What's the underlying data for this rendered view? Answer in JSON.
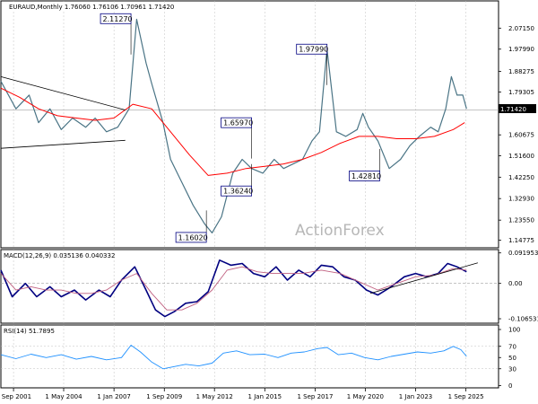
{
  "chart_data": {
    "type": "line",
    "panels": [
      {
        "name": "price",
        "title": "EURAUD,Monthly",
        "ohlc": "1.76060 1.76106 1.70961 1.71420",
        "ylim": [
          1.115,
          2.19
        ],
        "yticks": [
          "2.07150",
          "1.97990",
          "1.88275",
          "1.79305",
          "1.71420",
          "1.60675",
          "1.51600",
          "1.42250",
          "1.32930",
          "1.23550",
          "1.14775"
        ],
        "ytick_values": [
          2.0715,
          1.9799,
          1.88275,
          1.79305,
          1.7142,
          1.60675,
          1.516,
          1.4225,
          1.3293,
          1.2355,
          1.14775
        ],
        "current_price": "1.71420",
        "current_value": 1.7142,
        "series": [
          {
            "role": "price",
            "x": [
              2001.0,
              2001.8,
              2002.5,
              2003.0,
              2003.6,
              2004.2,
              2004.8,
              2005.5,
              2006.0,
              2006.6,
              2007.2,
              2007.8,
              2008.2,
              2008.7,
              2009.0,
              2009.6,
              2010.0,
              2010.6,
              2011.2,
              2011.8,
              2012.2,
              2012.7,
              2013.3,
              2013.8,
              2014.3,
              2014.9,
              2015.5,
              2016.0,
              2016.5,
              2017.0,
              2017.5,
              2017.9,
              2018.3,
              2018.8,
              2019.3,
              2019.9,
              2020.2,
              2020.5,
              2021.0,
              2021.6,
              2022.2,
              2022.7,
              2023.2,
              2023.8,
              2024.2,
              2024.6,
              2024.9,
              2025.2,
              2025.5,
              2025.7
            ],
            "y": [
              1.84,
              1.72,
              1.78,
              1.66,
              1.72,
              1.63,
              1.68,
              1.64,
              1.68,
              1.62,
              1.64,
              1.72,
              2.11,
              1.92,
              1.83,
              1.66,
              1.5,
              1.4,
              1.3,
              1.22,
              1.18,
              1.25,
              1.44,
              1.5,
              1.46,
              1.44,
              1.5,
              1.46,
              1.48,
              1.5,
              1.58,
              1.62,
              1.98,
              1.62,
              1.6,
              1.63,
              1.7,
              1.64,
              1.58,
              1.46,
              1.5,
              1.56,
              1.6,
              1.64,
              1.62,
              1.72,
              1.86,
              1.78,
              1.78,
              1.72
            ]
          },
          {
            "role": "moving-average",
            "x": [
              2001.0,
              2002.0,
              2003.0,
              2004.0,
              2005.0,
              2006.0,
              2007.0,
              2008.0,
              2009.0,
              2010.0,
              2011.0,
              2012.0,
              2013.0,
              2014.0,
              2015.0,
              2016.0,
              2017.0,
              2018.0,
              2019.0,
              2020.0,
              2021.0,
              2022.0,
              2023.0,
              2024.0,
              2025.0,
              2025.6
            ],
            "y": [
              1.81,
              1.77,
              1.72,
              1.69,
              1.68,
              1.67,
              1.68,
              1.74,
              1.72,
              1.62,
              1.52,
              1.43,
              1.44,
              1.46,
              1.47,
              1.48,
              1.5,
              1.53,
              1.57,
              1.6,
              1.6,
              1.59,
              1.59,
              1.6,
              1.63,
              1.66
            ]
          },
          {
            "role": "trendline",
            "x": [
              2001.0,
              2007.6
            ],
            "y": [
              1.86,
              1.715
            ]
          },
          {
            "role": "trendline",
            "x": [
              2001.0,
              2007.6
            ],
            "y": [
              1.548,
              1.583
            ]
          }
        ],
        "annotations": [
          {
            "label": "2.11270",
            "x": 2007.9,
            "y": 2.1127
          },
          {
            "label": "1.97990",
            "x": 2018.3,
            "y": 1.9799
          },
          {
            "label": "1.65970",
            "x": 2014.3,
            "y": 1.6597
          },
          {
            "label": "1.36240",
            "x": 2014.3,
            "y": 1.3624
          },
          {
            "label": "1.16020",
            "x": 2011.9,
            "y": 1.1602
          },
          {
            "label": "1.42810",
            "x": 2021.1,
            "y": 1.4281
          }
        ]
      },
      {
        "name": "macd",
        "title": "MACD(12,26,9) 0.035136 0.040332",
        "ylim": [
          -0.12,
          0.102
        ],
        "yticks": [
          "0.091953",
          "0.00",
          "-0.106531"
        ],
        "ytick_values": [
          0.091953,
          0.0,
          -0.106531
        ],
        "series": [
          {
            "role": "macd",
            "x": [
              2001.0,
              2001.6,
              2002.3,
              2002.9,
              2003.6,
              2004.2,
              2004.9,
              2005.5,
              2006.2,
              2006.8,
              2007.4,
              2008.1,
              2008.7,
              2009.2,
              2009.7,
              2010.2,
              2010.8,
              2011.4,
              2012.0,
              2012.6,
              2013.2,
              2013.8,
              2014.4,
              2015.0,
              2015.6,
              2016.2,
              2016.8,
              2017.4,
              2018.0,
              2018.6,
              2019.2,
              2019.8,
              2020.4,
              2021.0,
              2021.7,
              2022.4,
              2023.0,
              2023.6,
              2024.2,
              2024.7,
              2025.2,
              2025.7
            ],
            "y": [
              0.04,
              -0.04,
              0.0,
              -0.04,
              -0.01,
              -0.04,
              -0.02,
              -0.05,
              -0.02,
              -0.04,
              0.01,
              0.05,
              -0.02,
              -0.08,
              -0.1,
              -0.085,
              -0.06,
              -0.055,
              -0.025,
              0.07,
              0.055,
              0.06,
              0.03,
              0.02,
              0.05,
              0.01,
              0.04,
              0.02,
              0.055,
              0.05,
              0.02,
              0.01,
              -0.02,
              -0.035,
              -0.01,
              0.02,
              0.03,
              0.02,
              0.03,
              0.06,
              0.05,
              0.035
            ]
          },
          {
            "role": "signal",
            "x": [
              2001.0,
              2001.8,
              2002.6,
              2003.4,
              2004.2,
              2005.0,
              2005.8,
              2006.6,
              2007.4,
              2008.2,
              2009.0,
              2009.8,
              2010.6,
              2011.4,
              2012.2,
              2013.0,
              2013.8,
              2014.6,
              2015.4,
              2016.2,
              2017.0,
              2018.0,
              2019.0,
              2020.0,
              2021.0,
              2022.0,
              2023.0,
              2024.0,
              2025.0,
              2025.7
            ],
            "y": [
              0.03,
              -0.02,
              -0.01,
              -0.02,
              -0.02,
              -0.03,
              -0.03,
              -0.02,
              0.01,
              0.03,
              -0.03,
              -0.08,
              -0.08,
              -0.06,
              -0.02,
              0.04,
              0.05,
              0.035,
              0.03,
              0.03,
              0.03,
              0.04,
              0.03,
              0.005,
              -0.02,
              0.0,
              0.02,
              0.025,
              0.045,
              0.04
            ]
          },
          {
            "role": "trendline",
            "x": [
              2020.6,
              2026.3
            ],
            "y": [
              -0.03,
              0.062
            ]
          }
        ]
      },
      {
        "name": "rsi",
        "title": "RSI(14) 51.7895",
        "ylim": [
          -4,
          108
        ],
        "yticks": [
          "100",
          "70",
          "50",
          "30",
          "0"
        ],
        "ytick_values": [
          100,
          70,
          50,
          30,
          0
        ],
        "levels": [
          70,
          30
        ],
        "series": [
          {
            "role": "rsi",
            "x": [
              2001.0,
              2001.8,
              2002.6,
              2003.4,
              2004.2,
              2005.0,
              2005.8,
              2006.6,
              2007.4,
              2007.9,
              2008.4,
              2009.0,
              2009.6,
              2010.2,
              2010.8,
              2011.5,
              2012.2,
              2012.8,
              2013.5,
              2014.2,
              2015.0,
              2015.7,
              2016.4,
              2017.1,
              2017.8,
              2018.3,
              2018.9,
              2019.6,
              2020.3,
              2021.0,
              2021.7,
              2022.4,
              2023.1,
              2023.8,
              2024.5,
              2025.0,
              2025.4,
              2025.7
            ],
            "y": [
              55,
              48,
              56,
              50,
              55,
              47,
              52,
              46,
              50,
              72,
              60,
              42,
              30,
              34,
              38,
              35,
              40,
              58,
              62,
              55,
              56,
              50,
              58,
              60,
              66,
              68,
              55,
              58,
              50,
              46,
              52,
              56,
              60,
              58,
              62,
              70,
              64,
              52
            ]
          }
        ]
      }
    ],
    "x_ticks": [
      "1 Sep 2001",
      "1 May 2004",
      "1 Jan 2007",
      "1 Sep 2009",
      "1 May 2012",
      "1 Jan 2015",
      "1 Sep 2017",
      "1 May 2020",
      "1 Jan 2023",
      "1 Sep 2025"
    ],
    "x_tick_values": [
      2001.67,
      2004.33,
      2007.0,
      2009.67,
      2012.33,
      2015.0,
      2017.67,
      2020.33,
      2023.0,
      2025.67
    ],
    "xlim": [
      2001.0,
      2027.4
    ],
    "watermark": "ActionForex",
    "colors": {
      "price": "#4a7485",
      "moving-average": "#ff0000",
      "macd": "#000080",
      "signal": "#c06080",
      "rsi": "#1e90ff",
      "trendline": "#000000",
      "grid": "#c0c0c0"
    }
  }
}
